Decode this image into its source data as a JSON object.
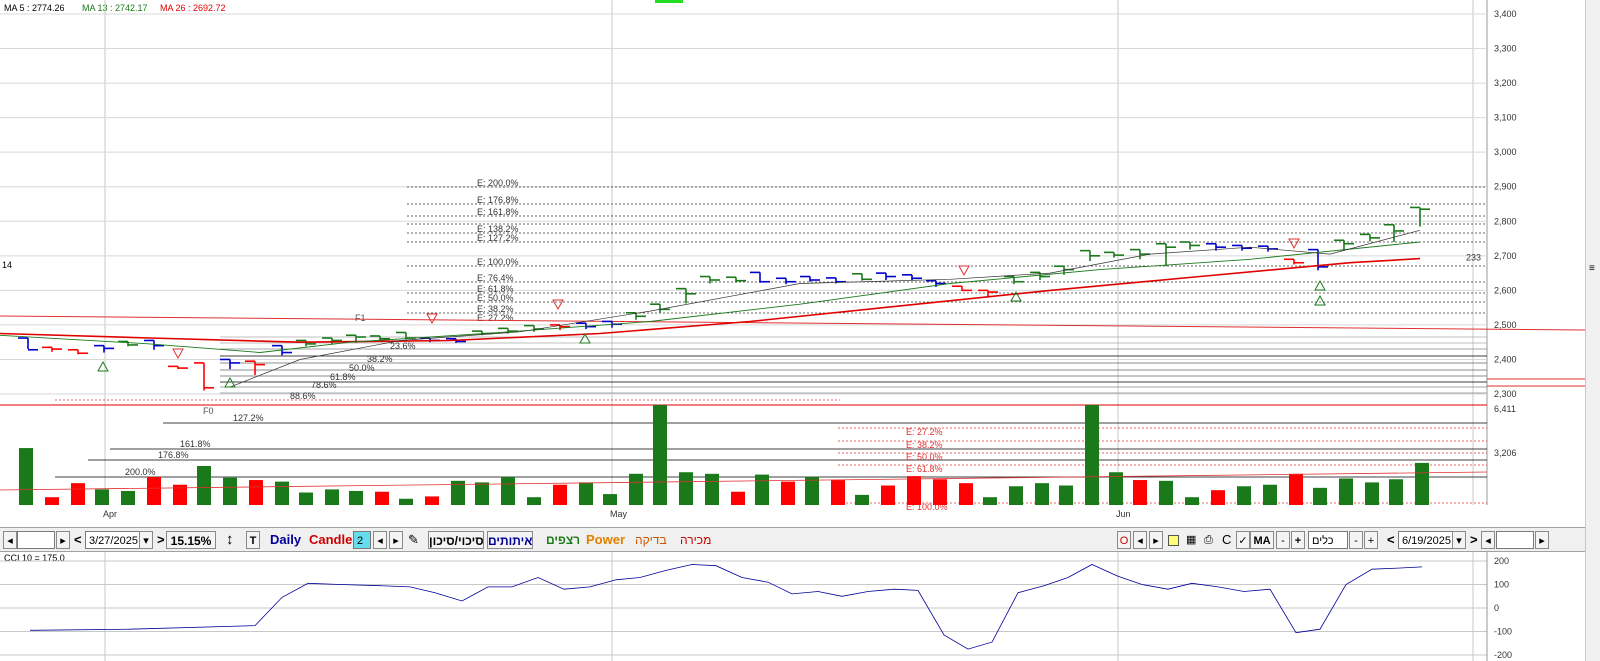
{
  "header": {
    "ma5": "MA 5 : 2774.26",
    "ma13": "MA 13 : 2742.17",
    "ma26": "MA 26 : 2692.72",
    "left_marker": "14"
  },
  "price_axis": {
    "ticks": [
      "3,400",
      "3,300",
      "3,200",
      "3,100",
      "3,000",
      "2,900",
      "2,800",
      "2,700",
      "2,600",
      "2,500",
      "2,400",
      "2,300"
    ],
    "last_value": "233"
  },
  "volume_axis": {
    "ticks": [
      "6,411",
      "3,206"
    ]
  },
  "cci_panel": {
    "label": "CCI 10 = 175.0",
    "ticks": [
      "200",
      "100",
      "0",
      "-100",
      "-200"
    ]
  },
  "months": [
    "Apr",
    "May",
    "Jun"
  ],
  "fib_extensions": [
    "E: 200.0%",
    "E: 176.8%",
    "E: 161.8%",
    "E: 138.2%",
    "E: 127.2%",
    "E: 100.0%",
    "E: 76.4%",
    "E: 61.8%",
    "E: 50.0%",
    "E: 38.2%",
    "E: 27.2%"
  ],
  "fib_retracements": [
    "23.6%",
    "38.2%",
    "50.0%",
    "61.8%",
    "78.6%",
    "88.6%",
    "127.2%",
    "161.8%",
    "176.8%",
    "200.0%"
  ],
  "fib_points": [
    "F1",
    "F0"
  ],
  "lower_fib": [
    "E: 27.2%",
    "E: 38.2%",
    "E: 50.0%",
    "E: 61.8%",
    "E: 100.0%"
  ],
  "toolbar": {
    "start_date": "3/27/2025",
    "zoom": "15.15%",
    "t_label": "T",
    "daily": "Daily",
    "candles": "Candles",
    "candles_num": "2",
    "support_resistance": "סיכוי/סיכון",
    "signals": "איתותים",
    "floors": "רצפים",
    "power": "Power",
    "check": "בדיקה",
    "sale": "מכירה",
    "o_label": "O",
    "c_label": "C",
    "ma_label": "MA",
    "plus": "+",
    "minus": "-",
    "tools": "כלים",
    "end_date": "6/19/2025",
    "prev": "<",
    "next": ">"
  },
  "colors": {
    "up": "#1a7a1a",
    "down": "#ff0000",
    "neutral": "#0000cc",
    "ma5": "#555555",
    "ma13": "#1a7a1a",
    "ma26": "#e00000"
  }
}
